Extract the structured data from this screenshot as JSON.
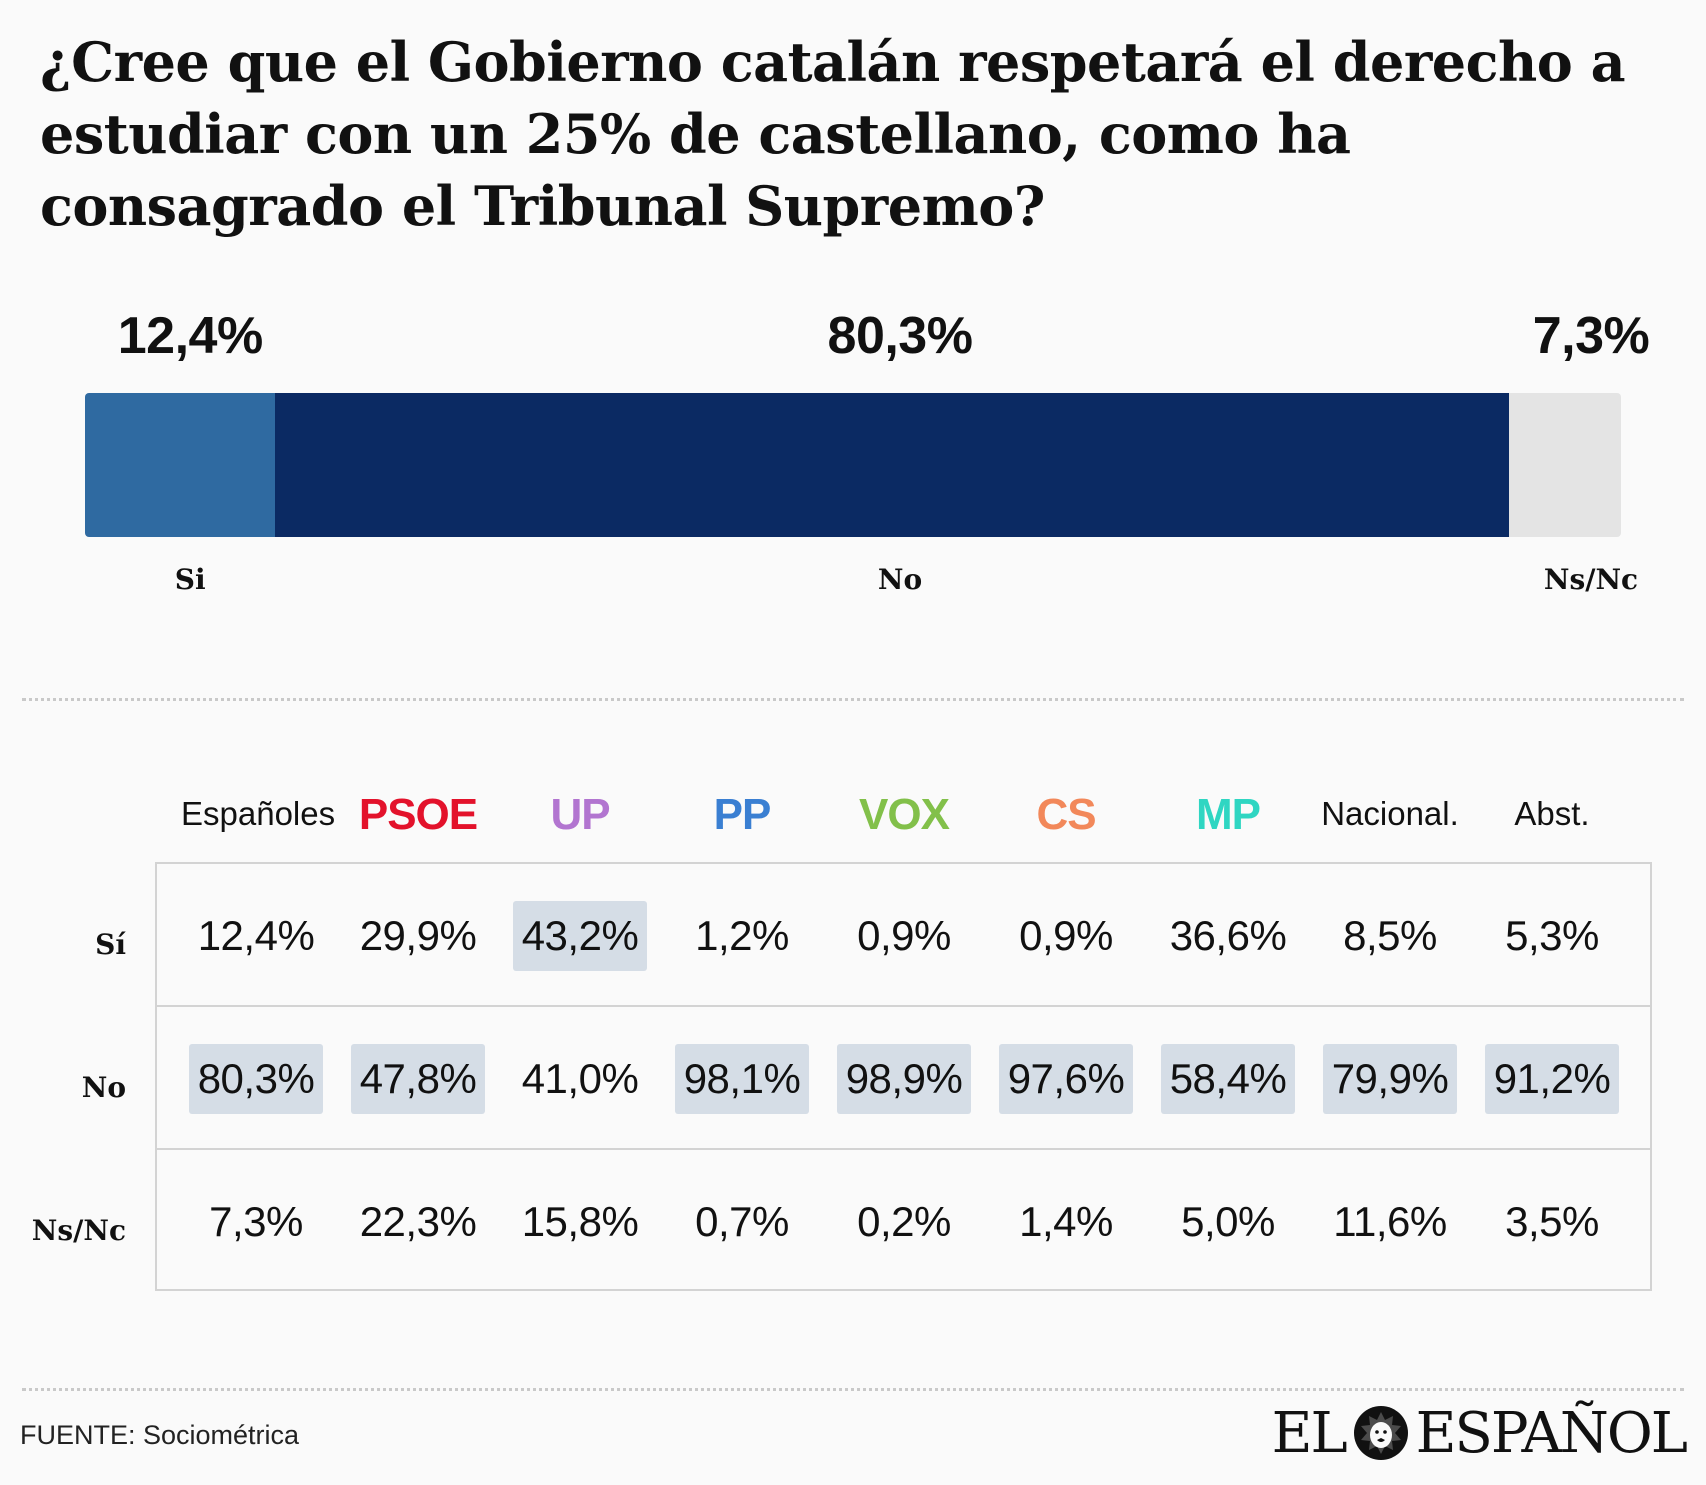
{
  "title": "¿Cree que el Gobierno catalán respetará el derecho a estudiar con un 25% de castellano, como ha consagrado el Tribunal Supremo?",
  "chart_data": [
    {
      "type": "bar",
      "stacked": true,
      "orientation": "horizontal",
      "categories": [
        "Si",
        "No",
        "Ns/Nc"
      ],
      "values": [
        12.4,
        80.3,
        7.3
      ],
      "value_labels": [
        "12,4%",
        "80,3%",
        "7,3%"
      ],
      "colors": [
        "#2f6aa1",
        "#0b2a63",
        "#e4e4e4"
      ]
    },
    {
      "type": "table",
      "columns": [
        {
          "label": "Españoles",
          "color": "#111111",
          "style": "plain"
        },
        {
          "label": "PSOE",
          "color": "#e3122b",
          "style": "party"
        },
        {
          "label": "UP",
          "color": "#b275d0",
          "style": "party"
        },
        {
          "label": "PP",
          "color": "#3a7fd2",
          "style": "party"
        },
        {
          "label": "VOX",
          "color": "#82c04a",
          "style": "party"
        },
        {
          "label": "CS",
          "color": "#f2885a",
          "style": "party"
        },
        {
          "label": "MP",
          "color": "#2fd6c2",
          "style": "party"
        },
        {
          "label": "Nacional.",
          "color": "#111111",
          "style": "plain"
        },
        {
          "label": "Abst.",
          "color": "#111111",
          "style": "plain"
        }
      ],
      "rows": [
        {
          "label": "Sí",
          "cells": [
            "12,4%",
            "29,9%",
            "43,2%",
            "1,2%",
            "0,9%",
            "0,9%",
            "36,6%",
            "8,5%",
            "5,3%"
          ],
          "highlight": [
            false,
            false,
            true,
            false,
            false,
            false,
            false,
            false,
            false
          ]
        },
        {
          "label": "No",
          "cells": [
            "80,3%",
            "47,8%",
            "41,0%",
            "98,1%",
            "98,9%",
            "97,6%",
            "58,4%",
            "79,9%",
            "91,2%"
          ],
          "highlight": [
            true,
            true,
            false,
            true,
            true,
            true,
            true,
            true,
            true
          ]
        },
        {
          "label": "Ns/Nc",
          "cells": [
            "7,3%",
            "22,3%",
            "15,8%",
            "0,7%",
            "0,2%",
            "1,4%",
            "5,0%",
            "11,6%",
            "3,5%"
          ],
          "highlight": [
            false,
            false,
            false,
            false,
            false,
            false,
            false,
            false,
            false
          ]
        }
      ],
      "highlight_color": "#d5dde6"
    }
  ],
  "source": "FUENTE: Sociométrica",
  "logo": {
    "left": "EL",
    "right": "ESPAÑOL",
    "icon": "lion-head-icon"
  }
}
